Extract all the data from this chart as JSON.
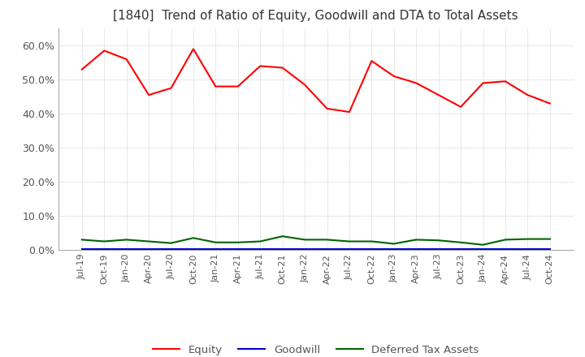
{
  "title": "[1840]  Trend of Ratio of Equity, Goodwill and DTA to Total Assets",
  "title_fontsize": 11,
  "ylim": [
    0.0,
    0.65
  ],
  "yticks": [
    0.0,
    0.1,
    0.2,
    0.3,
    0.4,
    0.5,
    0.6
  ],
  "ytick_labels": [
    "0.0%",
    "10.0%",
    "20.0%",
    "30.0%",
    "40.0%",
    "50.0%",
    "60.0%"
  ],
  "equity": [
    0.53,
    0.585,
    0.56,
    0.455,
    0.475,
    0.59,
    0.48,
    0.48,
    0.54,
    0.535,
    0.485,
    0.415,
    0.405,
    0.555,
    0.51,
    0.49,
    0.455,
    0.42,
    0.49,
    0.495,
    0.455,
    0.43
  ],
  "goodwill": [
    0.003,
    0.003,
    0.003,
    0.003,
    0.003,
    0.003,
    0.003,
    0.003,
    0.003,
    0.003,
    0.003,
    0.003,
    0.003,
    0.003,
    0.003,
    0.003,
    0.003,
    0.003,
    0.003,
    0.003,
    0.003,
    0.003
  ],
  "dta": [
    0.03,
    0.025,
    0.03,
    0.025,
    0.02,
    0.035,
    0.022,
    0.022,
    0.025,
    0.04,
    0.03,
    0.03,
    0.025,
    0.025,
    0.018,
    0.03,
    0.028,
    0.022,
    0.015,
    0.03,
    0.032,
    0.032
  ],
  "equity_color": "#FF0000",
  "goodwill_color": "#0000CD",
  "dta_color": "#006400",
  "background_color": "#FFFFFF",
  "grid_color": "#AAAAAA",
  "legend_labels": [
    "Equity",
    "Goodwill",
    "Deferred Tax Assets"
  ],
  "xtick_labels": [
    "Jul-19",
    "Oct-19",
    "Jan-20",
    "Apr-20",
    "Jul-20",
    "Oct-20",
    "Jan-21",
    "Apr-21",
    "Jul-21",
    "Oct-21",
    "Jan-22",
    "Apr-22",
    "Jul-22",
    "Oct-22",
    "Jan-23",
    "Apr-23",
    "Jul-23",
    "Oct-23",
    "Jan-24",
    "Apr-24",
    "Jul-24",
    "Oct-24"
  ]
}
